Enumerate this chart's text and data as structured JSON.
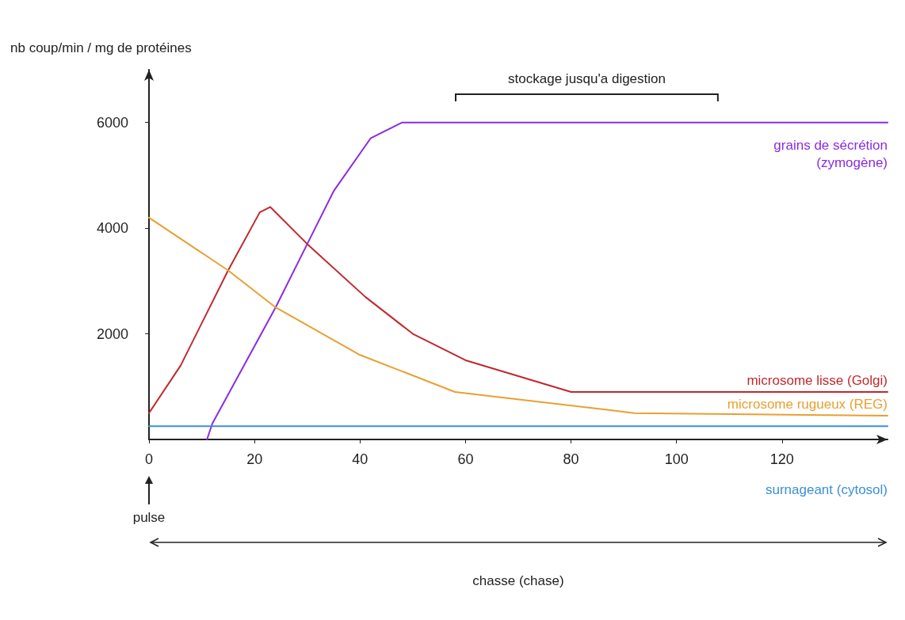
{
  "chart_data": {
    "type": "line",
    "ylabel": "nb coup/min / mg de protéines",
    "xlim": [
      0,
      140
    ],
    "xticks": [
      0,
      20,
      40,
      60,
      80,
      100,
      120
    ],
    "ylim": [
      0,
      7000
    ],
    "yticks": [
      2000,
      4000,
      6000
    ],
    "grid": false,
    "marker": "none",
    "line_style": "solid",
    "series": [
      {
        "name": "grains de sécrétion (zymogène)",
        "color": "#8a2be2",
        "x": [
          11,
          12,
          24,
          30,
          35,
          42,
          48,
          50,
          140
        ],
        "values": [
          0,
          300,
          2500,
          3700,
          4700,
          5700,
          6000,
          6000,
          6000
        ]
      },
      {
        "name": "microsome lisse (Golgi)",
        "color": "#c0282d",
        "x": [
          0,
          6,
          15,
          21,
          23,
          30,
          41,
          50,
          60,
          80,
          140
        ],
        "values": [
          500,
          1400,
          3200,
          4300,
          4400,
          3700,
          2700,
          2000,
          1500,
          900,
          900
        ]
      },
      {
        "name": "microsome rugueux (REG)",
        "color": "#e8a030",
        "x": [
          0,
          15,
          24,
          40,
          58,
          92,
          140
        ],
        "values": [
          4200,
          3200,
          2500,
          1600,
          900,
          500,
          450
        ]
      },
      {
        "name": "surnageant (cytosol)",
        "color": "#3a8fd8",
        "x": [
          0,
          140
        ],
        "values": [
          250,
          250
        ]
      }
    ],
    "annotations": [
      "stockage jusqu'a digestion",
      "pulse",
      "chasse (chase)"
    ]
  }
}
